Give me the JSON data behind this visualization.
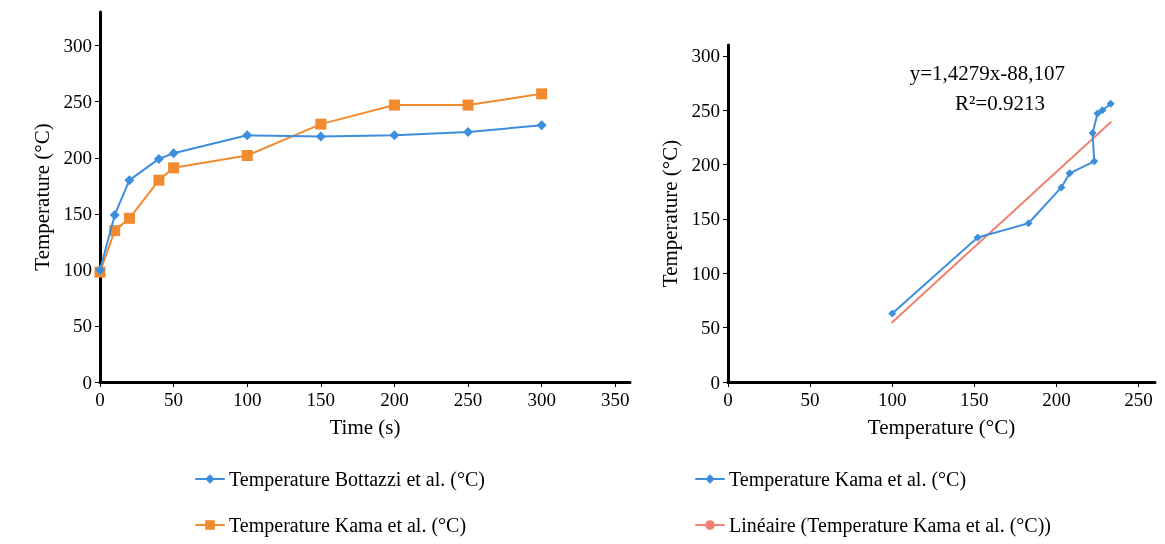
{
  "chart_data": [
    {
      "type": "line",
      "xlabel": "Time (s)",
      "ylabel": "Temperature (°C)",
      "xlim": [
        0,
        360
      ],
      "xticks": [
        0,
        50,
        100,
        150,
        200,
        250,
        300,
        350
      ],
      "ylim": [
        0,
        330
      ],
      "yticks": [
        0,
        50,
        100,
        150,
        200,
        250,
        300
      ],
      "grid": false,
      "legend": "bottom",
      "line_style": "solid",
      "series": [
        {
          "name": "Temperature Bottazzi et al. (°C)",
          "color": "#3e8ede",
          "marker": "diamond",
          "x": [
            0,
            10,
            20,
            40,
            50,
            100,
            150,
            200,
            250,
            300
          ],
          "values": [
            100,
            149,
            180,
            199,
            204,
            220,
            219,
            220,
            223,
            229
          ]
        },
        {
          "name": "Temperature Kama et al. (°C)",
          "color": "#f28a30",
          "marker": "square",
          "x": [
            0,
            10,
            20,
            40,
            50,
            100,
            150,
            200,
            250,
            300
          ],
          "values": [
            98,
            135,
            146,
            180,
            191,
            202,
            230,
            247,
            247,
            257
          ]
        }
      ]
    },
    {
      "type": "line",
      "xlabel": "Temperature (°C)",
      "ylabel": "Temperature (°C)",
      "xlim": [
        0,
        260
      ],
      "xticks": [
        0,
        50,
        100,
        150,
        200,
        250
      ],
      "ylim": [
        0,
        310
      ],
      "yticks": [
        0,
        50,
        100,
        150,
        200,
        250,
        300
      ],
      "grid": false,
      "legend": "bottom",
      "line_style": "solid",
      "annotations": [
        "y=1,4279x-88,107",
        "R²=0.9213"
      ],
      "series": [
        {
          "name": "Temperature Kama et al. (°C)",
          "color": "#3e8ede",
          "marker": "diamond",
          "x": [
            100,
            152,
            183,
            203,
            208,
            223,
            222,
            225,
            228,
            233
          ],
          "values": [
            63,
            133,
            146,
            179,
            192,
            203,
            229,
            247,
            250,
            256
          ]
        },
        {
          "name": "Linéaire (Temperature Kama et al. (°C))",
          "color": "#f08070",
          "marker": "none",
          "x": [
            100,
            233
          ],
          "values": [
            55,
            239
          ]
        }
      ]
    }
  ]
}
